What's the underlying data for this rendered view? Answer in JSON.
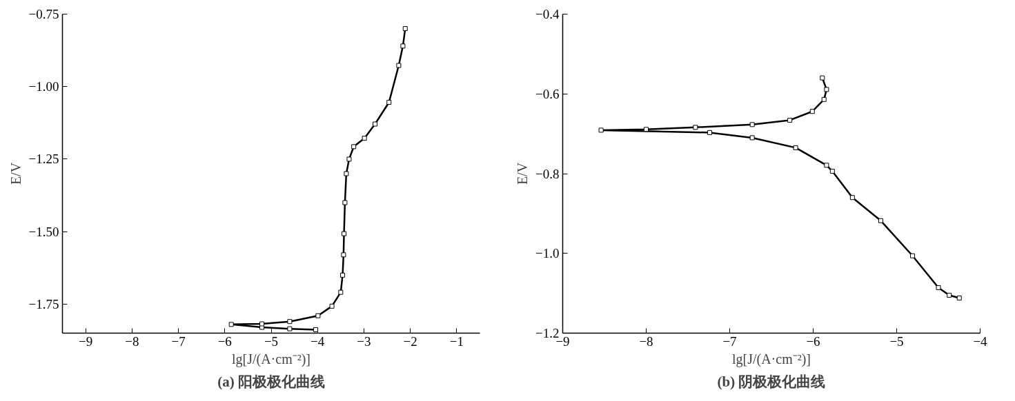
{
  "chart_data": [
    {
      "type": "line",
      "title": "(a) 阳极极化曲线",
      "xlabel": "lg[J/(A·cm⁻²)]",
      "ylabel": "E/V",
      "marker": "square",
      "grid": false,
      "xlim": [
        -9.5,
        -0.5
      ],
      "ylim": [
        -1.85,
        -0.75
      ],
      "xticks": [
        {
          "value": -9,
          "label": "−9"
        },
        {
          "value": -8,
          "label": "−8"
        },
        {
          "value": -7,
          "label": "−7"
        },
        {
          "value": -6,
          "label": "−6"
        },
        {
          "value": -5,
          "label": "−5"
        },
        {
          "value": -4,
          "label": "−4"
        },
        {
          "value": -3,
          "label": "−3"
        },
        {
          "value": -2,
          "label": "−2"
        },
        {
          "value": -1,
          "label": "−1"
        }
      ],
      "yticks": [
        {
          "value": -0.75,
          "label": "−0.75"
        },
        {
          "value": -1.0,
          "label": "−1.00"
        },
        {
          "value": -1.25,
          "label": "−1.25"
        },
        {
          "value": -1.5,
          "label": "−1.50"
        },
        {
          "value": -1.75,
          "label": "−1.75"
        }
      ],
      "series": [
        {
          "color": "#000000",
          "x": [
            -4.04,
            -4.6,
            -5.2,
            -5.86,
            -5.2,
            -4.6,
            -3.99,
            -3.69,
            -3.5,
            -3.46,
            -3.44,
            -3.43,
            -3.41,
            -3.38,
            -3.32,
            -3.22,
            -2.99,
            -2.76,
            -2.46,
            -2.25,
            -2.16,
            -2.11
          ],
          "values": [
            -1.838,
            -1.835,
            -1.83,
            -1.82,
            -1.818,
            -1.81,
            -1.79,
            -1.757,
            -1.709,
            -1.65,
            -1.58,
            -1.507,
            -1.4,
            -1.3,
            -1.25,
            -1.207,
            -1.178,
            -1.129,
            -1.054,
            -0.927,
            -0.86,
            -0.8
          ]
        }
      ]
    },
    {
      "type": "line",
      "title": "(b) 阴极极化曲线",
      "xlabel": "lg[J/(A·cm⁻²)]",
      "ylabel": "E/V",
      "marker": "square",
      "grid": false,
      "xlim": [
        -9,
        -4
      ],
      "ylim": [
        -1.2,
        -0.4
      ],
      "xticks": [
        {
          "value": -9,
          "label": "−9"
        },
        {
          "value": -8,
          "label": "−8"
        },
        {
          "value": -7,
          "label": "−7"
        },
        {
          "value": -6,
          "label": "−6"
        },
        {
          "value": -5,
          "label": "−5"
        },
        {
          "value": -4,
          "label": "−4"
        }
      ],
      "yticks": [
        {
          "value": -0.4,
          "label": "−0.4"
        },
        {
          "value": -0.6,
          "label": "−0.6"
        },
        {
          "value": -0.8,
          "label": "−0.8"
        },
        {
          "value": -1.0,
          "label": "−1.0"
        },
        {
          "value": -1.2,
          "label": "−1.2"
        }
      ],
      "series": [
        {
          "color": "#000000",
          "x": [
            -5.89,
            -5.84,
            -5.87,
            -6.01,
            -6.28,
            -6.73,
            -7.41,
            -8.0,
            -8.54,
            -7.24,
            -6.73,
            -6.21,
            -5.84,
            -5.77,
            -5.53,
            -5.19,
            -4.81,
            -4.5,
            -4.37,
            -4.25
          ],
          "values": [
            -0.56,
            -0.589,
            -0.614,
            -0.644,
            -0.666,
            -0.677,
            -0.684,
            -0.689,
            -0.691,
            -0.697,
            -0.71,
            -0.735,
            -0.779,
            -0.794,
            -0.86,
            -0.918,
            -1.006,
            -1.086,
            -1.105,
            -1.112
          ]
        }
      ]
    }
  ]
}
